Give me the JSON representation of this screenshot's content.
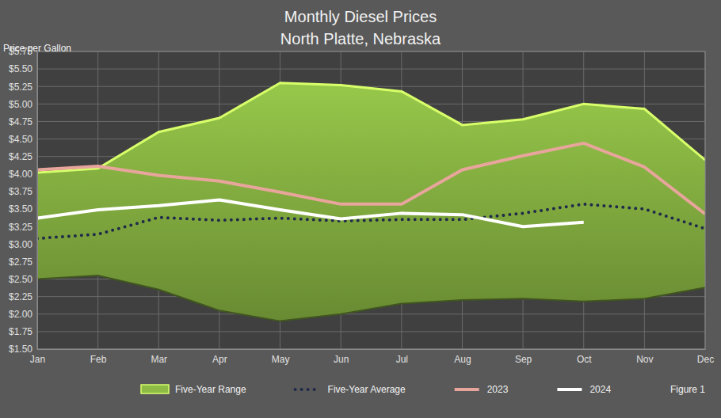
{
  "chart_data": {
    "type": "line",
    "title": "Monthly Diesel Prices",
    "subtitle": "North Platte, Nebraska",
    "y_label": "Price per Gallon",
    "annotations": [
      "Figure 1"
    ],
    "categories": [
      "Jan",
      "Feb",
      "Mar",
      "Apr",
      "May",
      "Jun",
      "Jul",
      "Aug",
      "Sep",
      "Oct",
      "Nov",
      "Dec"
    ],
    "series": [
      {
        "name": "Five-Year Range",
        "type": "area",
        "color": "#8dbb45",
        "values": [
          4.02,
          4.08,
          4.6,
          4.8,
          5.3,
          5.27,
          5.18,
          4.7,
          4.78,
          5.0,
          4.93,
          4.2
        ],
        "low": [
          2.5,
          2.55,
          2.35,
          2.05,
          1.9,
          2.0,
          2.15,
          2.2,
          2.22,
          2.18,
          2.22,
          2.38
        ]
      },
      {
        "name": "Five-Year Average",
        "type": "line",
        "line_style": "dotted",
        "color": "#1f2a4a",
        "values": [
          3.08,
          3.14,
          3.38,
          3.34,
          3.37,
          3.33,
          3.35,
          3.35,
          3.44,
          3.57,
          3.5,
          3.22
        ]
      },
      {
        "name": "2023",
        "type": "line",
        "line_style": "solid",
        "color": "#e8a59c",
        "values": [
          4.06,
          4.11,
          3.98,
          3.9,
          3.74,
          3.57,
          3.57,
          4.06,
          4.26,
          4.44,
          4.1,
          3.43
        ]
      },
      {
        "name": "2024",
        "type": "line",
        "line_style": "solid",
        "color": "#ffffff",
        "values": [
          3.37,
          3.49,
          3.55,
          3.63,
          3.49,
          3.36,
          3.44,
          3.42,
          3.25,
          3.31,
          null,
          null
        ]
      }
    ],
    "ylim": [
      1.5,
      5.75
    ],
    "yticks": [
      {
        "value": 1.5,
        "label": "$1.50"
      },
      {
        "value": 1.75,
        "label": "$1.75"
      },
      {
        "value": 2.0,
        "label": "$2.00"
      },
      {
        "value": 2.25,
        "label": "$2.25"
      },
      {
        "value": 2.5,
        "label": "$2.50"
      },
      {
        "value": 2.75,
        "label": "$2.75"
      },
      {
        "value": 3.0,
        "label": "$3.00"
      },
      {
        "value": 3.25,
        "label": "$3.25"
      },
      {
        "value": 3.5,
        "label": "$3.50"
      },
      {
        "value": 3.75,
        "label": "$3.75"
      },
      {
        "value": 4.0,
        "label": "$4.00"
      },
      {
        "value": 4.25,
        "label": "$4.25"
      },
      {
        "value": 4.5,
        "label": "$4.50"
      },
      {
        "value": 4.75,
        "label": "$4.75"
      },
      {
        "value": 5.0,
        "label": "$5.00"
      },
      {
        "value": 5.25,
        "label": "$5.25"
      },
      {
        "value": 5.5,
        "label": "$5.50"
      },
      {
        "value": 5.75,
        "label": "$5.75"
      }
    ],
    "grid": true,
    "legend": "bottom"
  }
}
